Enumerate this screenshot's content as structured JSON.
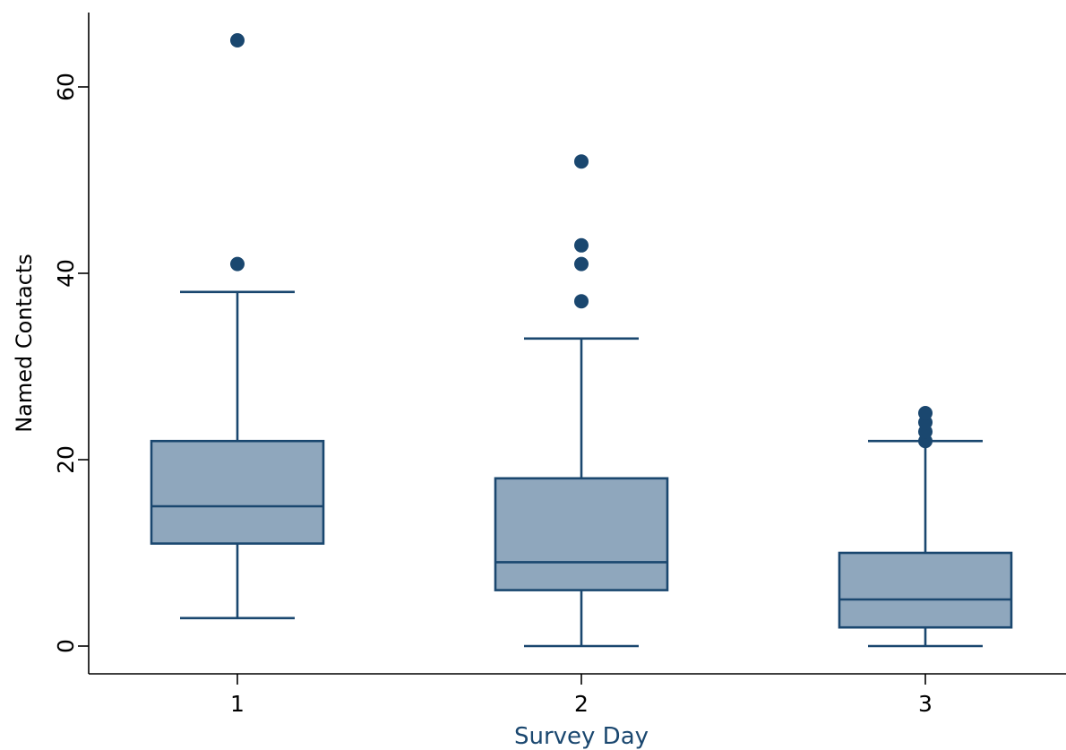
{
  "chart_data": {
    "type": "box",
    "xlabel": "Survey Day",
    "ylabel": "Named Contacts",
    "ylim": [
      0,
      67
    ],
    "yticks": [
      0,
      20,
      40,
      60
    ],
    "categories": [
      "1",
      "2",
      "3"
    ],
    "colors": {
      "box_fill": "#8fa7bd",
      "box_stroke": "#1a476f",
      "outlier": "#1a476f",
      "xlabel": "#1a476f",
      "axis": "#000000"
    },
    "boxes": [
      {
        "category": "1",
        "whisker_low": 3,
        "q1": 11,
        "median": 15,
        "q3": 22,
        "whisker_high": 38,
        "outliers": [
          41,
          65
        ]
      },
      {
        "category": "2",
        "whisker_low": 0,
        "q1": 6,
        "median": 9,
        "q3": 18,
        "whisker_high": 33,
        "outliers": [
          37,
          41,
          43,
          52
        ]
      },
      {
        "category": "3",
        "whisker_low": 0,
        "q1": 2,
        "median": 5,
        "q3": 10,
        "whisker_high": 22,
        "outliers": [
          22,
          23,
          24,
          25
        ]
      }
    ]
  }
}
